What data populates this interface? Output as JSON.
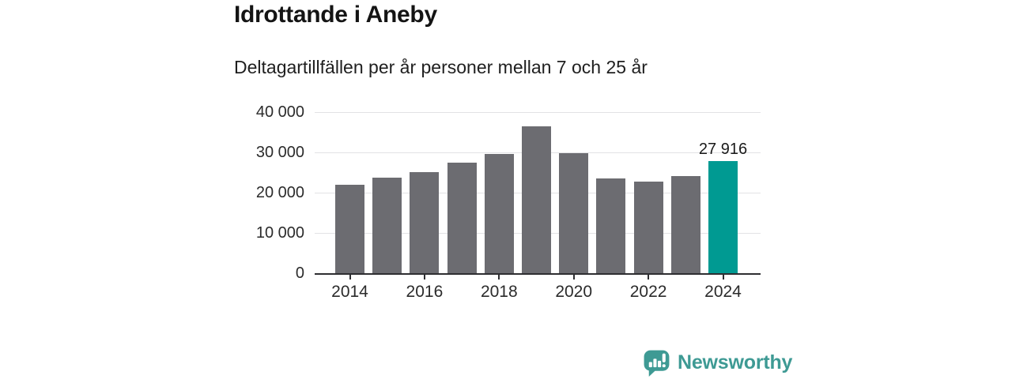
{
  "header": {
    "title": "Idrottande i Aneby",
    "subtitle": "Deltagartillfällen per år personer mellan 7 och 25 år"
  },
  "chart_data": {
    "type": "bar",
    "title": "Idrottande i Aneby",
    "subtitle": "Deltagartillfällen per år personer mellan 7 och 25 år",
    "categories": [
      "2014",
      "2015",
      "2016",
      "2017",
      "2018",
      "2019",
      "2020",
      "2021",
      "2022",
      "2023",
      "2024"
    ],
    "values": [
      22000,
      23800,
      25100,
      27400,
      29600,
      36500,
      29900,
      23500,
      22700,
      24200,
      27916
    ],
    "highlight_index": 10,
    "value_labels": {
      "10": "27 916"
    },
    "yticks": [
      {
        "value": 0,
        "label": "0"
      },
      {
        "value": 10000,
        "label": "10 000"
      },
      {
        "value": 20000,
        "label": "20 000"
      },
      {
        "value": 30000,
        "label": "30 000"
      },
      {
        "value": 40000,
        "label": "40 000"
      }
    ],
    "xticks": [
      "2014",
      "2016",
      "2018",
      "2020",
      "2022",
      "2024"
    ],
    "ylim": [
      0,
      40000
    ],
    "grid": "horizontal",
    "legend": "none",
    "colors": {
      "bar": "#6C6C71",
      "highlight": "#009A92",
      "gridline": "#E2E2E5",
      "axis": "#2E2E31",
      "text": "#2B2B2B"
    }
  },
  "footer": {
    "brand": "Newsworthy",
    "brand_color": "#3E9A94",
    "logo_icon": "bar-chart-speech-bubble-icon"
  }
}
